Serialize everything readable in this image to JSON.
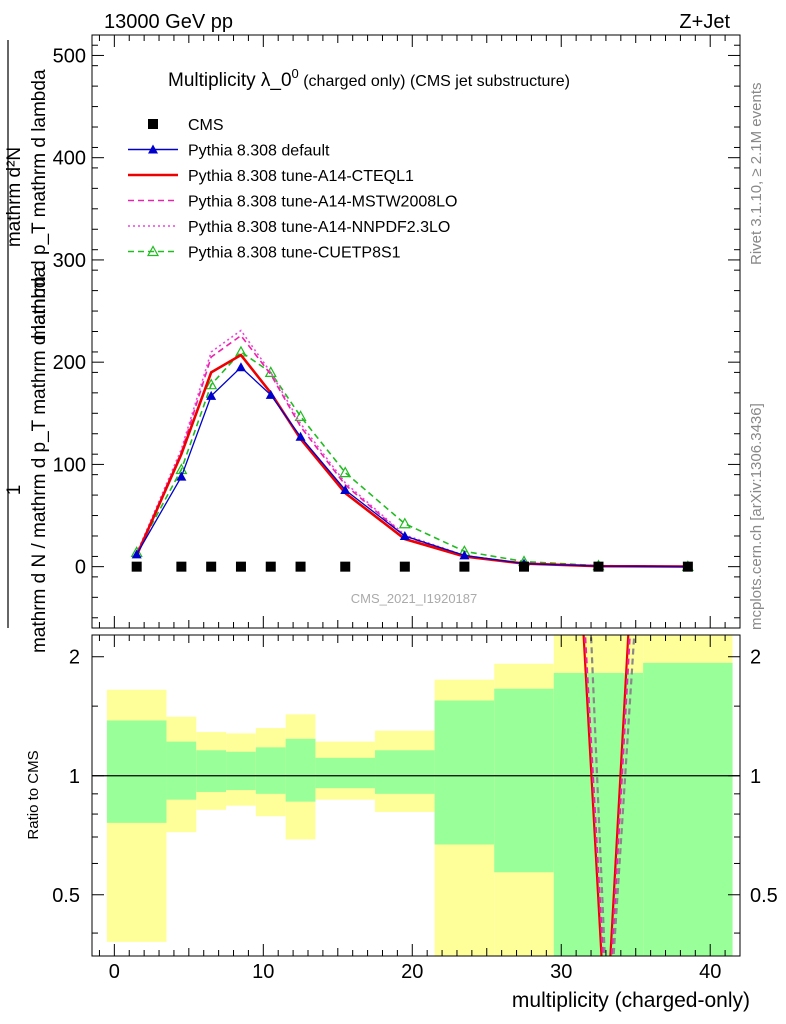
{
  "header": {
    "energy_label": "13000 GeV pp",
    "process_label": "Z+Jet",
    "rivet_label": "Rivet 3.1.10, ≥ 2.1M events",
    "mcplots_label": "mcplots.cern.ch [arXiv:1306.3436]"
  },
  "chart_data": [
    {
      "type": "line",
      "title_main": "Multiplicity λ_0",
      "title_sup": "0",
      "title_sub": " (charged only) (CMS jet substructure)",
      "ylabel_numerator": "1",
      "ylabel_denominator": "mathrm d N / mathrm d p_T mathrm d lambda",
      "ylabel_top": "mathrm d²N",
      "ylabel_bottom": "mathrm d p_T mathrm d lambda",
      "watermark": "CMS_2021_I1920187",
      "ylim": [
        -60,
        520
      ],
      "xlim": [
        -1.5,
        42
      ],
      "yticks": [
        0,
        100,
        200,
        300,
        400,
        500
      ],
      "ytick_labels": [
        "0",
        "100",
        "200",
        "300",
        "400",
        "500"
      ],
      "legend_position": "top-left",
      "x": [
        1.5,
        4.5,
        6.5,
        8.5,
        10.5,
        12.5,
        15.5,
        19.5,
        23.5,
        27.5,
        32.5,
        38.5
      ],
      "series": [
        {
          "name": "CMS",
          "color": "#000000",
          "marker": "square",
          "dash": "none",
          "values": [
            0,
            0,
            0,
            0,
            0,
            0,
            0,
            0,
            0,
            0,
            0,
            0
          ]
        },
        {
          "name": "Pythia 8.308 default",
          "color": "#0000cc",
          "marker": "triangle-filled",
          "dash": "solid",
          "values": [
            12,
            88,
            167,
            195,
            168,
            127,
            75,
            30,
            11,
            3,
            0.5,
            0.1
          ]
        },
        {
          "name": "Pythia 8.308 tune-A14-CTEQL1",
          "color": "#ee0000",
          "marker": "none",
          "dash": "solid",
          "values": [
            11,
            110,
            190,
            207,
            170,
            125,
            72,
            27,
            10,
            3,
            0.5,
            0.1
          ]
        },
        {
          "name": "Pythia 8.308 tune-A14-MSTW2008LO",
          "color": "#ee22aa",
          "marker": "none",
          "dash": "dashed",
          "values": [
            12,
            112,
            205,
            226,
            188,
            137,
            80,
            30,
            10,
            3,
            0.5,
            0.1
          ]
        },
        {
          "name": "Pythia 8.308 tune-A14-NNPDF2.3LO",
          "color": "#ee44dd",
          "marker": "none",
          "dash": "dotted",
          "values": [
            13,
            115,
            210,
            231,
            190,
            140,
            82,
            31,
            11,
            3,
            0.5,
            0.1
          ]
        },
        {
          "name": "Pythia 8.308 tune-CUETP8S1",
          "color": "#22bb22",
          "marker": "triangle-open",
          "dash": "dashed",
          "values": [
            14,
            95,
            178,
            210,
            190,
            147,
            92,
            42,
            15,
            5,
            1,
            0.2
          ]
        }
      ]
    },
    {
      "type": "area",
      "ylabel": "Ratio to CMS",
      "xlabel": "multiplicity (charged-only)",
      "xlim": [
        -1.5,
        42
      ],
      "ylim": [
        0.35,
        2.27
      ],
      "xticks": [
        0,
        10,
        20,
        30,
        40
      ],
      "xtick_labels": [
        "0",
        "10",
        "20",
        "30",
        "40"
      ],
      "yticks": [
        0.5,
        1,
        2
      ],
      "ytick_labels": [
        "0.5",
        "1",
        "2"
      ],
      "reference_line": 1,
      "bins": [
        {
          "lo": -0.5,
          "hi": 3.5,
          "y_lo": 0.38,
          "y_hi": 1.65,
          "g_lo": 0.76,
          "g_hi": 1.38
        },
        {
          "lo": 3.5,
          "hi": 5.5,
          "y_lo": 0.72,
          "y_hi": 1.41,
          "g_lo": 0.87,
          "g_hi": 1.22
        },
        {
          "lo": 5.5,
          "hi": 7.5,
          "y_lo": 0.82,
          "y_hi": 1.29,
          "g_lo": 0.91,
          "g_hi": 1.16
        },
        {
          "lo": 7.5,
          "hi": 9.5,
          "y_lo": 0.84,
          "y_hi": 1.28,
          "g_lo": 0.92,
          "g_hi": 1.15
        },
        {
          "lo": 9.5,
          "hi": 11.5,
          "y_lo": 0.79,
          "y_hi": 1.32,
          "g_lo": 0.9,
          "g_hi": 1.18
        },
        {
          "lo": 11.5,
          "hi": 13.5,
          "y_lo": 0.69,
          "y_hi": 1.43,
          "g_lo": 0.86,
          "g_hi": 1.24
        },
        {
          "lo": 13.5,
          "hi": 17.5,
          "y_lo": 0.87,
          "y_hi": 1.22,
          "g_lo": 0.93,
          "g_hi": 1.11
        },
        {
          "lo": 17.5,
          "hi": 21.5,
          "y_lo": 0.81,
          "y_hi": 1.3,
          "g_lo": 0.9,
          "g_hi": 1.16
        },
        {
          "lo": 21.5,
          "hi": 25.5,
          "y_lo": 0.35,
          "y_hi": 1.75,
          "g_lo": 0.67,
          "g_hi": 1.55
        },
        {
          "lo": 25.5,
          "hi": 29.5,
          "y_lo": 0.35,
          "y_hi": 1.92,
          "g_lo": 0.57,
          "g_hi": 1.66
        },
        {
          "lo": 29.5,
          "hi": 35.5,
          "y_lo": 0.35,
          "y_hi": 2.27,
          "g_lo": 0.35,
          "g_hi": 1.82
        },
        {
          "lo": 35.5,
          "hi": 41.5,
          "y_lo": 0.35,
          "y_hi": 2.27,
          "g_lo": 0.35,
          "g_hi": 1.93
        }
      ],
      "band_colors": {
        "outer": "#ffff99",
        "inner": "#99ff99"
      },
      "ratio_lines": [
        {
          "color": "#ee0000",
          "dash": "solid",
          "x": [
            30.5,
            31.5,
            32.8,
            33.2,
            34.5,
            35.5
          ],
          "values": [
            2.6,
            2.27,
            0.3,
            0.3,
            2.27,
            2.6
          ]
        },
        {
          "color": "#ee22aa",
          "dash": "dashed",
          "x": [
            30.6,
            31.6,
            32.9,
            33.3,
            34.6,
            35.6
          ],
          "values": [
            2.6,
            2.27,
            0.3,
            0.3,
            2.27,
            2.6
          ]
        },
        {
          "color": "#888888",
          "dash": "dashed",
          "x": [
            31.0,
            32.0,
            33.0,
            33.4,
            34.9,
            35.9
          ],
          "values": [
            2.6,
            2.27,
            0.3,
            0.3,
            2.27,
            2.6
          ]
        }
      ]
    }
  ]
}
